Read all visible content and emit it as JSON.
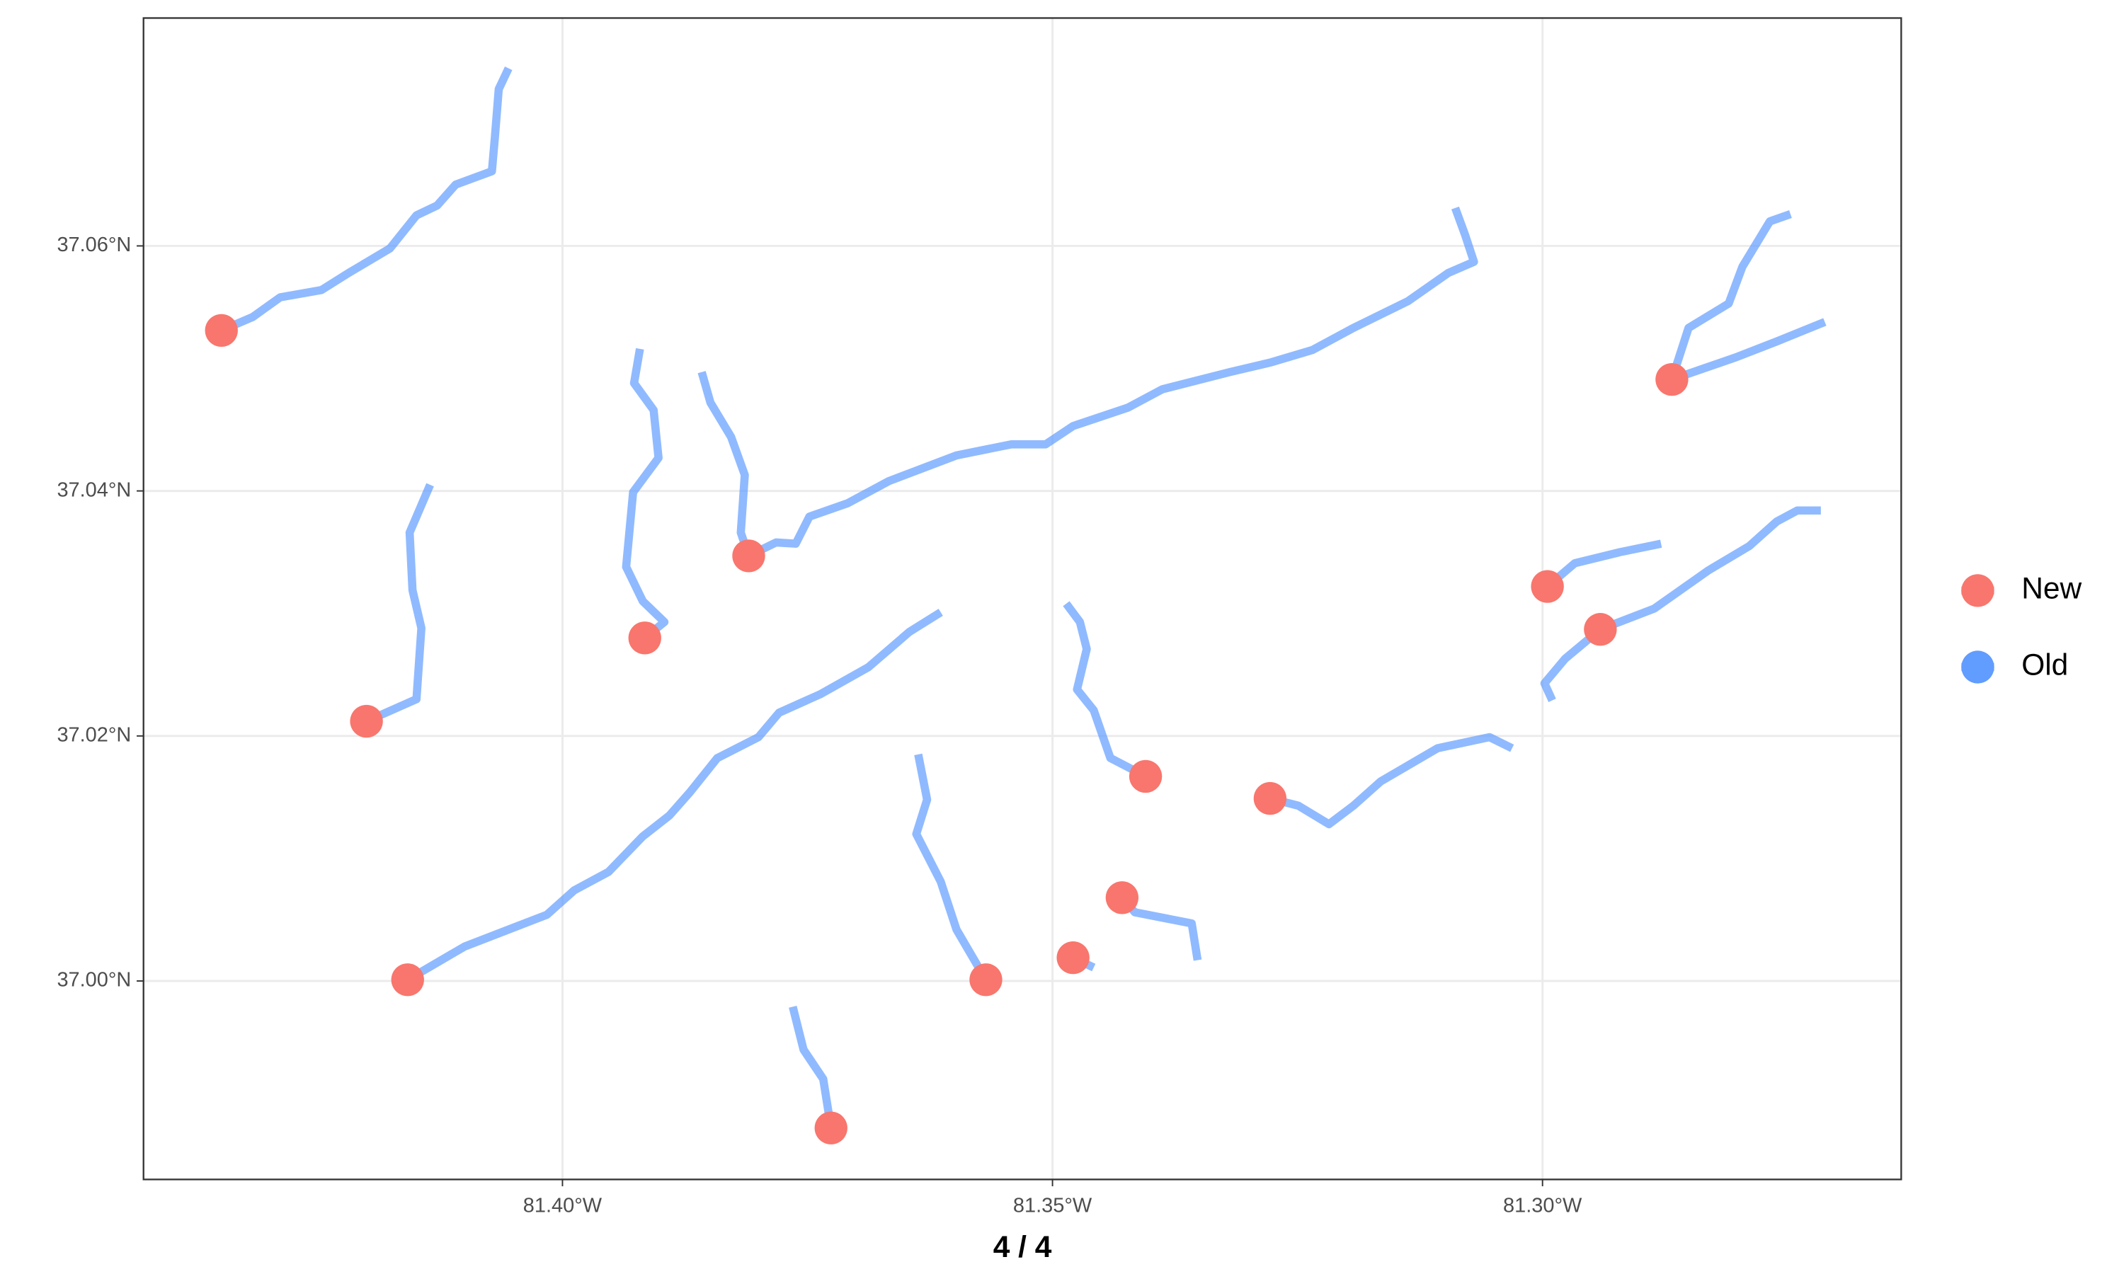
{
  "chart_data": {
    "type": "map",
    "xlabel": "4 / 4",
    "xlim": [
      -81.44275,
      -81.2634
    ],
    "ylim": [
      36.9838,
      37.0786
    ],
    "xticks": [
      {
        "value": -81.4,
        "label": "81.40°W"
      },
      {
        "value": -81.35,
        "label": "81.35°W"
      },
      {
        "value": -81.3,
        "label": "81.30°W"
      }
    ],
    "yticks": [
      {
        "value": 37.0,
        "label": "37.00°N"
      },
      {
        "value": 37.02,
        "label": "37.02°N"
      },
      {
        "value": 37.04,
        "label": "37.04°N"
      },
      {
        "value": 37.06,
        "label": "37.06°N"
      }
    ],
    "grid": true,
    "legend": "right",
    "series": [
      {
        "name": "New",
        "color": "#f8766d",
        "x": [
          -81.4348,
          -81.42,
          -81.4158,
          -81.3916,
          -81.381,
          -81.3726,
          -81.3568,
          -81.3479,
          -81.3429,
          -81.3405,
          -81.3278,
          -81.2995,
          -81.2941,
          -81.2868
        ],
        "y": [
          37.0531,
          37.0212,
          37.0001,
          37.028,
          37.0347,
          36.988,
          37.0001,
          37.0019,
          37.0068,
          37.0167,
          37.0149,
          37.0322,
          37.0287,
          37.0491
        ]
      },
      {
        "name": "Old",
        "color": "#619cff",
        "lines": [
          {
            "x": [
              -81.4348,
              -81.4316,
              -81.4288,
              -81.4246,
              -81.4218,
              -81.4176,
              -81.4149,
              -81.4128,
              -81.4109,
              -81.4072,
              -81.4069,
              -81.4065,
              -81.4055
            ],
            "y": [
              37.0531,
              37.0542,
              37.0558,
              37.0564,
              37.0578,
              37.0598,
              37.0625,
              37.0633,
              37.065,
              37.0661,
              37.0689,
              37.0728,
              37.0745
            ]
          },
          {
            "x": [
              -81.42,
              -81.4149,
              -81.4144,
              -81.4153,
              -81.4156,
              -81.4135
            ],
            "y": [
              37.0212,
              37.023,
              37.0288,
              37.0319,
              37.0366,
              37.0405
            ]
          },
          {
            "x": [
              -81.4158,
              -81.41,
              -81.4055,
              -81.4016,
              -81.3988,
              -81.3953,
              -81.3918,
              -81.3891,
              -81.387,
              -81.3842,
              -81.38,
              -81.3779,
              -81.3737,
              -81.3688,
              -81.3646,
              -81.3614
            ],
            "y": [
              37.0001,
              37.0028,
              37.0042,
              37.0054,
              37.0074,
              37.0089,
              37.0118,
              37.0135,
              37.0154,
              37.0182,
              37.0199,
              37.0219,
              37.0234,
              37.0256,
              37.0285,
              37.0301
            ]
          },
          {
            "x": [
              -81.3916,
              -81.3896,
              -81.3918,
              -81.3935,
              -81.3928,
              -81.3902,
              -81.3907,
              -81.3927,
              -81.3921
            ],
            "y": [
              37.028,
              37.0293,
              37.031,
              37.0338,
              37.0399,
              37.0427,
              37.0466,
              37.0488,
              37.0516
            ]
          },
          {
            "x": [
              -81.381,
              -81.3782,
              -81.3762,
              -81.3748,
              -81.3709,
              -81.3667,
              -81.3598,
              -81.3542,
              -81.3507,
              -81.3479,
              -81.3423,
              -81.3388,
              -81.3319,
              -81.3277,
              -81.3235,
              -81.3193,
              -81.3137,
              -81.3096,
              -81.307,
              -81.3079,
              -81.3089
            ],
            "y": [
              37.0347,
              37.0358,
              37.0357,
              37.0379,
              37.039,
              37.0408,
              37.0429,
              37.0438,
              37.0438,
              37.0453,
              37.0468,
              37.0483,
              37.0497,
              37.0505,
              37.0515,
              37.0533,
              37.0555,
              37.0578,
              37.0587,
              37.0609,
              37.0631
            ]
          },
          {
            "x": [
              -81.381,
              -81.3818,
              -81.3814,
              -81.3828,
              -81.3849,
              -81.3858
            ],
            "y": [
              37.0347,
              37.0366,
              37.0413,
              37.0444,
              37.0472,
              37.0497
            ]
          },
          {
            "x": [
              -81.3726,
              -81.3734,
              -81.3754,
              -81.3765
            ],
            "y": [
              36.988,
              36.992,
              36.9944,
              36.9979
            ]
          },
          {
            "x": [
              -81.3568,
              -81.3598,
              -81.3614,
              -81.3639,
              -81.3628,
              -81.3637
            ],
            "y": [
              37.0001,
              37.0042,
              37.0081,
              37.012,
              37.0148,
              37.0185
            ]
          },
          {
            "x": [
              -81.3479,
              -81.3458
            ],
            "y": [
              37.0019,
              37.0011
            ]
          },
          {
            "x": [
              -81.3429,
              -81.3416,
              -81.3358,
              -81.3352
            ],
            "y": [
              37.0068,
              37.0056,
              37.0047,
              37.0017
            ]
          },
          {
            "x": [
              -81.3405,
              -81.3441,
              -81.3458,
              -81.3475,
              -81.3465,
              -81.3472,
              -81.3486
            ],
            "y": [
              37.0167,
              37.0182,
              37.0221,
              37.0238,
              37.0271,
              37.0293,
              37.0308
            ]
          },
          {
            "x": [
              -81.3278,
              -81.3249,
              -81.3218,
              -81.3193,
              -81.3165,
              -81.3107,
              -81.3054,
              -81.3031
            ],
            "y": [
              37.0149,
              37.0143,
              37.0128,
              37.0143,
              37.0163,
              37.019,
              37.0199,
              37.019
            ]
          },
          {
            "x": [
              -81.2995,
              -81.2967,
              -81.2921,
              -81.2879
            ],
            "y": [
              37.0322,
              37.0341,
              37.035,
              37.0357
            ]
          },
          {
            "x": [
              -81.299,
              -81.2998,
              -81.2977,
              -81.2941,
              -81.2886,
              -81.2831,
              -81.2789,
              -81.2761,
              -81.274,
              -81.2716
            ],
            "y": [
              37.0229,
              37.0243,
              37.0263,
              37.0287,
              37.0304,
              37.0335,
              37.0355,
              37.0375,
              37.0384,
              37.0384
            ]
          },
          {
            "x": [
              -81.2868,
              -81.2851,
              -81.281,
              -81.2796,
              -81.2768,
              -81.2747
            ],
            "y": [
              37.0491,
              37.0533,
              37.0553,
              37.0583,
              37.062,
              37.0626
            ]
          },
          {
            "x": [
              -81.2868,
              -81.2803,
              -81.2761,
              -81.2712
            ],
            "y": [
              37.0491,
              37.0509,
              37.0522,
              37.0538
            ]
          }
        ]
      }
    ]
  }
}
